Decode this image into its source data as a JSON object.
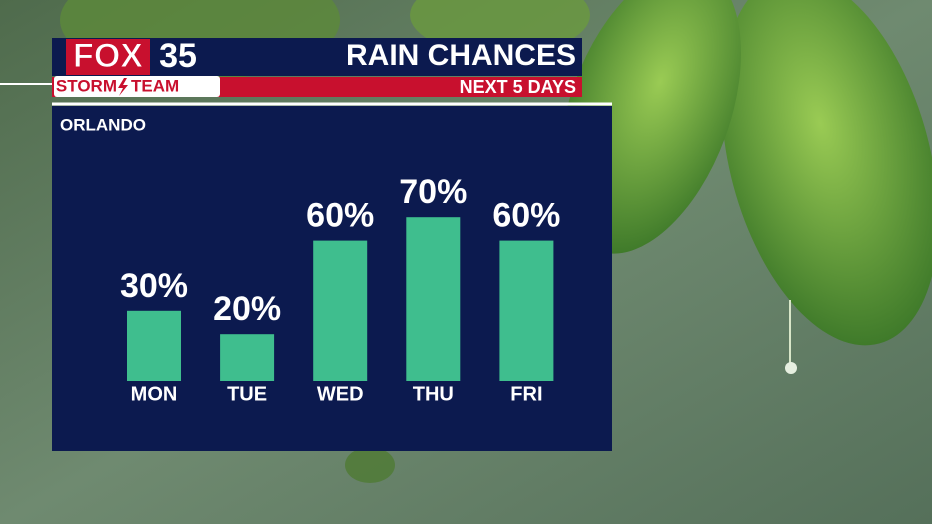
{
  "brand": {
    "network": "FOX",
    "channel": "35",
    "team_left": "STORM",
    "team_right": "TEAM"
  },
  "chart_data": {
    "type": "bar",
    "title": "RAIN CHANCES",
    "subtitle": "NEXT 5 DAYS",
    "location": "ORLANDO",
    "categories": [
      "MON",
      "TUE",
      "WED",
      "THU",
      "FRI"
    ],
    "values": [
      30,
      20,
      60,
      70,
      60
    ],
    "value_labels": [
      "30%",
      "20%",
      "60%",
      "70%",
      "60%"
    ],
    "color": "#3fbe8e"
  }
}
